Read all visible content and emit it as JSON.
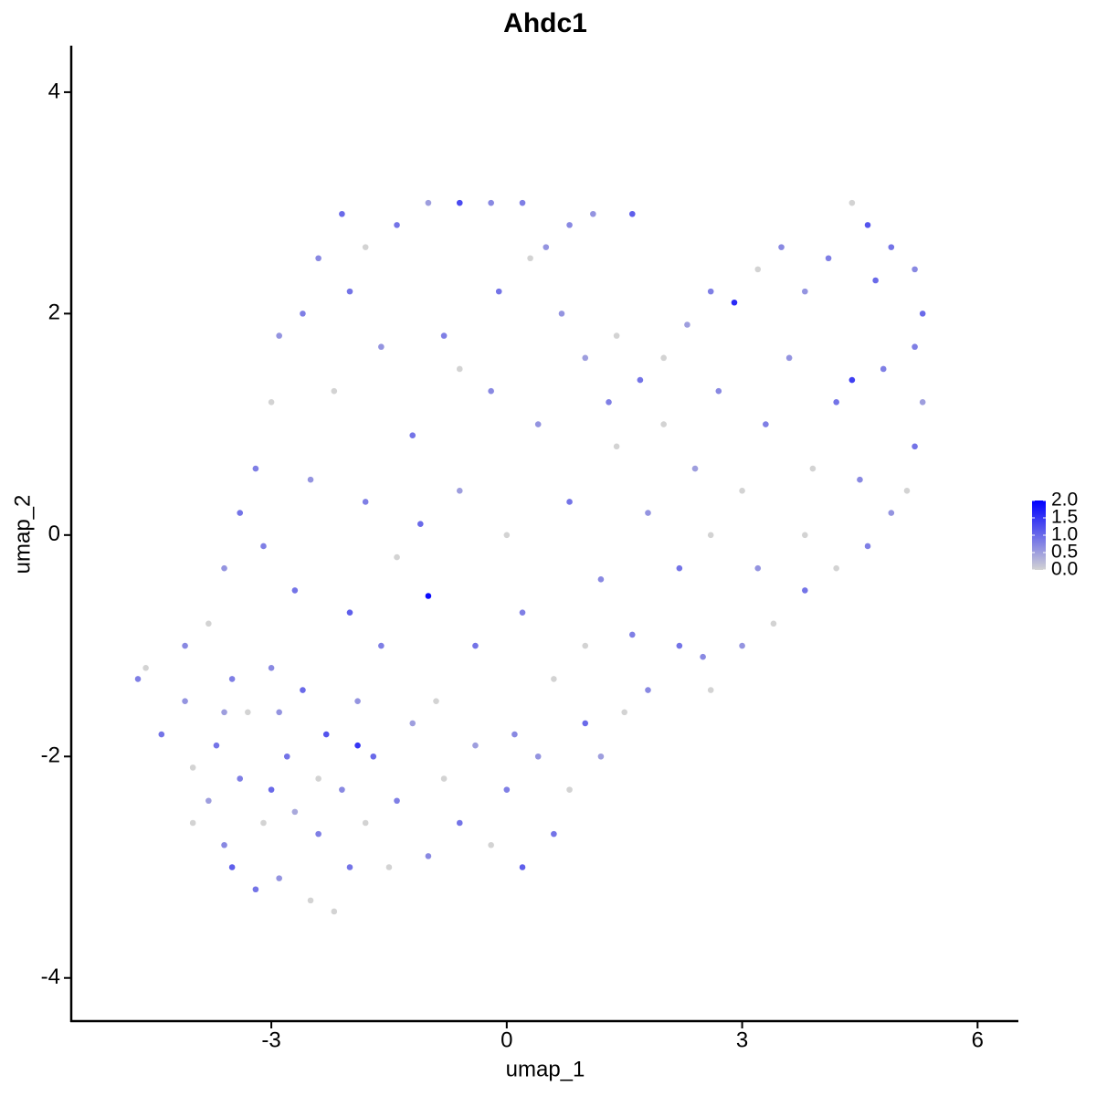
{
  "chart_data": {
    "type": "scatter",
    "title": "Ahdc1",
    "x_label": "umap_1",
    "y_label": "umap_2",
    "xlim": [
      -5.55,
      6.52
    ],
    "ylim": [
      -4.39,
      4.42
    ],
    "xticks": [
      {
        "value": -3,
        "label": "-3"
      },
      0,
      3,
      6
    ],
    "yticks": [
      {
        "value": -4,
        "label": "-4"
      },
      {
        "value": -2,
        "label": "-2"
      },
      0,
      2,
      4
    ],
    "color_low": "#d3d3d3",
    "color_high": "#0000ff",
    "color_lim": [
      0,
      2
    ],
    "color_ticks": [
      {
        "value": 0,
        "label": "0.0"
      },
      {
        "value": 0.5,
        "label": "0.5"
      },
      {
        "value": 1,
        "label": "1.0"
      },
      {
        "value": 1.5,
        "label": "1.5"
      },
      {
        "value": 2,
        "label": "2.0"
      }
    ],
    "grid": false,
    "x": [
      -4.7,
      -4.6,
      -4.4,
      -4.1,
      -4.0,
      -3.8,
      -3.7,
      -3.6,
      -3.5,
      -3.4,
      -3.3,
      -3.2,
      -3.1,
      -3.0,
      -2.9,
      -2.8,
      -2.7,
      -2.6,
      -2.5,
      -2.4,
      -2.3,
      -2.2,
      -2.1,
      -2.0,
      -1.9,
      -1.8,
      -1.7,
      -1.5,
      -1.4,
      -1.2,
      -1.0,
      -0.8,
      -0.6,
      -0.4,
      -0.2,
      0.0,
      0.2,
      0.4,
      0.6,
      0.8,
      1.0,
      1.2,
      1.5,
      1.8,
      2.2,
      2.6,
      3.0,
      3.4,
      3.8,
      4.2,
      4.6,
      4.9,
      5.1,
      5.2,
      5.3,
      5.2,
      5.3,
      5.2,
      4.9,
      4.6,
      4.4,
      4.1,
      3.8,
      3.5,
      3.2,
      2.9,
      2.6,
      2.3,
      2.0,
      1.7,
      1.4,
      1.1,
      1.6,
      0.8,
      0.5,
      0.2,
      -0.2,
      -0.6,
      -1.0,
      -1.4,
      -1.8,
      -2.1,
      -2.4,
      -2.6,
      -2.9,
      -3.0,
      -3.2,
      -3.4,
      -3.6,
      -3.8,
      -4.1,
      -3.5,
      -2.7,
      -2.5,
      -2.2,
      -2.0,
      -1.8,
      -1.6,
      -1.4,
      -1.2,
      -1.0,
      -0.8,
      -0.6,
      -0.4,
      -0.2,
      0.0,
      0.2,
      0.4,
      0.6,
      0.8,
      1.0,
      1.2,
      1.4,
      1.6,
      1.8,
      2.0,
      2.2,
      2.4,
      2.7,
      3.0,
      3.3,
      3.6,
      3.9,
      4.2,
      4.5,
      4.8,
      4.4,
      3.8,
      3.2,
      2.6,
      -1.1,
      -2.9,
      -1.6,
      -0.9,
      0.1,
      1.0,
      -3.0,
      -2.4,
      -1.9,
      -0.1,
      -0.6,
      0.7,
      -2.0,
      -3.1,
      -4.0,
      -3.6,
      0.3,
      1.3,
      2.5,
      4.7
    ],
    "y": [
      -1.3,
      -1.2,
      -1.8,
      -1.5,
      -2.1,
      -2.4,
      -1.9,
      -2.8,
      -3.0,
      -2.2,
      -1.6,
      -3.2,
      -2.6,
      -1.2,
      -3.1,
      -2.0,
      -2.5,
      -1.4,
      -3.3,
      -2.7,
      -1.8,
      -3.4,
      -2.3,
      -3.0,
      -1.5,
      -2.6,
      -2.0,
      -3.0,
      -2.4,
      -1.7,
      -2.9,
      -2.2,
      -2.6,
      -1.9,
      -2.8,
      -2.3,
      -3.0,
      -2.0,
      -2.7,
      -2.3,
      -1.7,
      -2.0,
      -1.6,
      -1.4,
      -1.0,
      -1.4,
      -1.0,
      -0.8,
      -0.5,
      -0.3,
      -0.1,
      0.2,
      0.4,
      0.8,
      1.2,
      1.7,
      2.0,
      2.4,
      2.6,
      2.8,
      3.0,
      2.5,
      2.2,
      2.6,
      2.4,
      2.1,
      2.2,
      1.9,
      1.6,
      1.4,
      1.8,
      2.9,
      2.9,
      2.8,
      2.6,
      3.0,
      3.0,
      3.0,
      3.0,
      2.8,
      2.6,
      2.9,
      2.5,
      2.0,
      1.8,
      1.2,
      0.6,
      0.2,
      -0.3,
      -0.8,
      -1.0,
      -1.3,
      -0.5,
      0.5,
      1.3,
      -0.7,
      0.3,
      1.7,
      -0.2,
      0.9,
      -0.55,
      1.8,
      0.4,
      -1.0,
      1.3,
      0.0,
      -0.7,
      1.0,
      -1.3,
      0.3,
      1.6,
      -0.4,
      0.8,
      -0.9,
      0.2,
      1.0,
      -0.3,
      0.6,
      1.3,
      0.4,
      1.0,
      1.6,
      0.6,
      1.2,
      0.5,
      1.5,
      1.4,
      0.0,
      -0.3,
      0.0,
      0.1,
      -1.6,
      -1.0,
      -1.5,
      -1.8,
      -1.0,
      -2.3,
      -2.2,
      -1.9,
      2.2,
      1.5,
      2.0,
      2.2,
      -0.1,
      -2.6,
      -1.6,
      2.5,
      1.2,
      -1.1,
      2.3
    ],
    "expression": [
      0.8,
      0,
      0.9,
      0.6,
      0,
      0.5,
      0.9,
      0.7,
      1.1,
      0.8,
      0,
      0.9,
      0,
      0.7,
      0.6,
      0.9,
      0.4,
      1.0,
      0,
      0.8,
      1.2,
      0,
      0.7,
      0.9,
      0.6,
      0,
      1.0,
      0,
      0.8,
      0.5,
      0.7,
      0,
      0.9,
      0.5,
      0,
      0.8,
      1.1,
      0.6,
      0.9,
      0,
      1.0,
      0.5,
      0,
      0.7,
      0.9,
      0,
      0.6,
      0,
      0.9,
      0,
      0.8,
      0.6,
      0,
      0.9,
      0.5,
      0.8,
      1.0,
      0.7,
      0.9,
      1.2,
      0,
      0.8,
      0.6,
      0.7,
      0,
      1.6,
      0.8,
      0.5,
      0,
      0.9,
      0,
      0.6,
      1.1,
      0.7,
      0.6,
      0.8,
      0.7,
      1.3,
      0.5,
      0.9,
      0,
      1.0,
      0.7,
      0.8,
      0.6,
      0,
      0.8,
      0.9,
      0.6,
      0,
      0.7,
      0.8,
      0.9,
      0.6,
      0,
      1.1,
      0.8,
      0.6,
      0,
      0.9,
      1.9,
      0.8,
      0.5,
      0.9,
      0.7,
      0,
      0.8,
      0.6,
      0,
      0.9,
      0.5,
      0.7,
      0,
      0.8,
      0.6,
      0,
      0.9,
      0.5,
      0.7,
      0,
      0.8,
      0.6,
      0,
      0.9,
      0.7,
      0.8,
      1.4,
      0,
      0.6,
      0,
      1.0,
      0.6,
      0.8,
      0,
      0.7,
      0,
      1.0,
      0,
      1.5,
      0.9,
      0,
      0.6,
      0.9,
      0.8,
      0,
      0.5,
      0,
      0.8,
      0.7,
      1.0
    ]
  }
}
